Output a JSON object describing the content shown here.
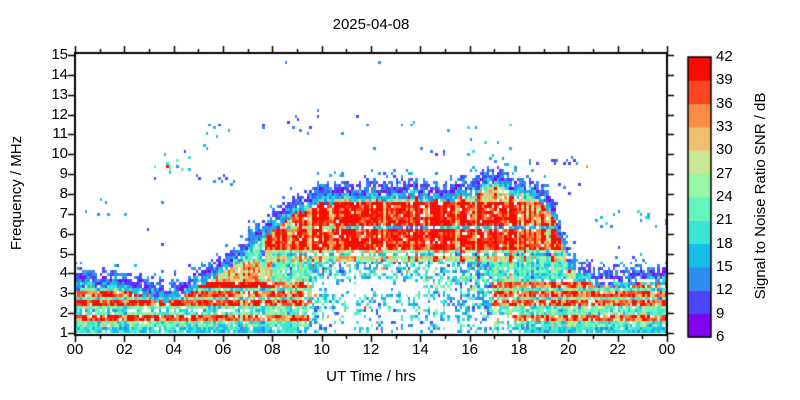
{
  "chart_data": {
    "type": "heatmap",
    "title": "2025-04-08",
    "xlabel": "UT Time / hrs",
    "ylabel": "Frequency / MHz",
    "colorbar_label": "Signal to Noise Ratio SNR / dB",
    "x_range_hours": [
      0,
      24
    ],
    "x_tick_labels": [
      "00",
      "02",
      "04",
      "06",
      "08",
      "10",
      "12",
      "14",
      "16",
      "18",
      "20",
      "22",
      "00"
    ],
    "x_minor_tick_every_hours": 1,
    "y_range_mhz": [
      1,
      15
    ],
    "y_ticks": [
      1,
      2,
      3,
      4,
      5,
      6,
      7,
      8,
      9,
      10,
      11,
      12,
      13,
      14,
      15
    ],
    "snr_ticks": [
      6,
      9,
      12,
      15,
      18,
      21,
      24,
      27,
      30,
      33,
      36,
      39,
      42
    ],
    "snr_range_db": [
      6,
      42
    ],
    "colorbar_colors": [
      "#8203f2",
      "#4b46fa",
      "#2f8cf0",
      "#18bce8",
      "#3be4d4",
      "#64f5be",
      "#96f8a5",
      "#c8e896",
      "#f0c06e",
      "#fa8c46",
      "#fa4621",
      "#f80c00"
    ],
    "background_color": "#ffffff",
    "axis_color": "#000000",
    "envelope_mhz_by_hour": [
      [
        0,
        3.9
      ],
      [
        0.5,
        3.92
      ],
      [
        1,
        3.9
      ],
      [
        1.5,
        3.85
      ],
      [
        2,
        3.8
      ],
      [
        2.5,
        3.6
      ],
      [
        3,
        3.45
      ],
      [
        3.5,
        3.25
      ],
      [
        3.8,
        3.2
      ],
      [
        4,
        3.3
      ],
      [
        4.5,
        3.6
      ],
      [
        5,
        4.05
      ],
      [
        5.5,
        4.35
      ],
      [
        6,
        4.7
      ],
      [
        6.5,
        5.15
      ],
      [
        7,
        5.8
      ],
      [
        7.5,
        6.3
      ],
      [
        8,
        6.8
      ],
      [
        8.5,
        7.3
      ],
      [
        9,
        7.7
      ],
      [
        9.5,
        8.05
      ],
      [
        10,
        8.3
      ],
      [
        10.5,
        8.25
      ],
      [
        11,
        8.4
      ],
      [
        11.5,
        8.3
      ],
      [
        12,
        8.45
      ],
      [
        12.5,
        8.25
      ],
      [
        13,
        8.35
      ],
      [
        13.5,
        8.45
      ],
      [
        14,
        8.3
      ],
      [
        14.5,
        8.4
      ],
      [
        15,
        8.35
      ],
      [
        15.5,
        8.4
      ],
      [
        16,
        8.5
      ],
      [
        16.4,
        8.85
      ],
      [
        16.9,
        9.15
      ],
      [
        17.2,
        9.0
      ],
      [
        17.5,
        8.7
      ],
      [
        18,
        8.55
      ],
      [
        18.5,
        8.45
      ],
      [
        19,
        8.1
      ],
      [
        19.3,
        7.5
      ],
      [
        19.6,
        6.6
      ],
      [
        20,
        5.0
      ],
      [
        20.3,
        4.5
      ],
      [
        20.6,
        4.2
      ],
      [
        21,
        4.05
      ],
      [
        21.5,
        3.95
      ],
      [
        22,
        3.95
      ],
      [
        22.5,
        4.0
      ],
      [
        23,
        4.05
      ],
      [
        23.5,
        4.1
      ],
      [
        24,
        4.15
      ]
    ],
    "strong_interference_rows_mhz": [
      1.78,
      2.5,
      2.95,
      3.35
    ],
    "day_core_strong_rows_mhz": [
      [
        5.2,
        6.25
      ],
      [
        6.45,
        7.6
      ]
    ],
    "day_weak_row_mhz": 4.95,
    "day_quiet_row": {
      "mhz": 6.35,
      "hours": [
        11,
        19.7
      ]
    },
    "notch_rows": [
      {
        "mhz": 2.18,
        "hours": [
          0,
          7.5
        ]
      },
      {
        "mhz": 4.92,
        "hours": [
          8.8,
          17.3
        ]
      },
      {
        "mhz": 3.62,
        "hours": [
          18.8,
          24
        ]
      }
    ],
    "midday_absorption": {
      "hours": [
        9,
        18
      ],
      "low_band_below_mhz": 4.4
    },
    "midday_gap": {
      "hours": [
        9.7,
        14
      ],
      "mhz": [
        2.95,
        3.7
      ]
    },
    "sporadic_dot_clusters": [
      [
        0.3,
        1.35,
        6.8,
        7.75,
        5,
        10,
        17
      ],
      [
        3.0,
        4.65,
        8.4,
        10.3,
        14,
        10,
        24
      ],
      [
        4.7,
        6.45,
        8.35,
        8.95,
        9,
        10,
        15
      ],
      [
        5.2,
        6.35,
        10.2,
        11.5,
        8,
        10,
        17
      ],
      [
        6.3,
        9.8,
        10.9,
        11.8,
        7,
        10,
        14
      ],
      [
        8.3,
        12.3,
        9.9,
        12.2,
        8,
        10,
        15
      ],
      [
        10.1,
        10.8,
        8.8,
        9.3,
        4,
        14,
        19
      ],
      [
        13.2,
        17.9,
        9.8,
        11.8,
        13,
        10,
        20
      ],
      [
        14.4,
        15.2,
        9.9,
        10.2,
        4,
        10,
        14
      ],
      [
        18.3,
        20.6,
        9.35,
        9.7,
        16,
        10,
        15
      ],
      [
        19.6,
        20.6,
        7.8,
        8.5,
        4,
        10,
        14
      ],
      [
        21.1,
        22.05,
        6.3,
        7.1,
        8,
        12,
        19
      ],
      [
        22.6,
        24.0,
        6.3,
        7.1,
        10,
        12,
        19
      ]
    ],
    "sporadic_single_dots": [
      [
        1.95,
        6.95,
        16
      ],
      [
        2.9,
        6.2,
        11
      ],
      [
        3.45,
        5.4,
        11
      ],
      [
        3.5,
        7.5,
        12
      ],
      [
        3.66,
        9.3,
        40
      ],
      [
        8.5,
        14.6,
        12
      ],
      [
        12.3,
        14.55,
        12
      ],
      [
        13.7,
        11.6,
        17
      ],
      [
        20.7,
        9.25,
        33
      ],
      [
        22.0,
        5.2,
        11
      ]
    ]
  }
}
